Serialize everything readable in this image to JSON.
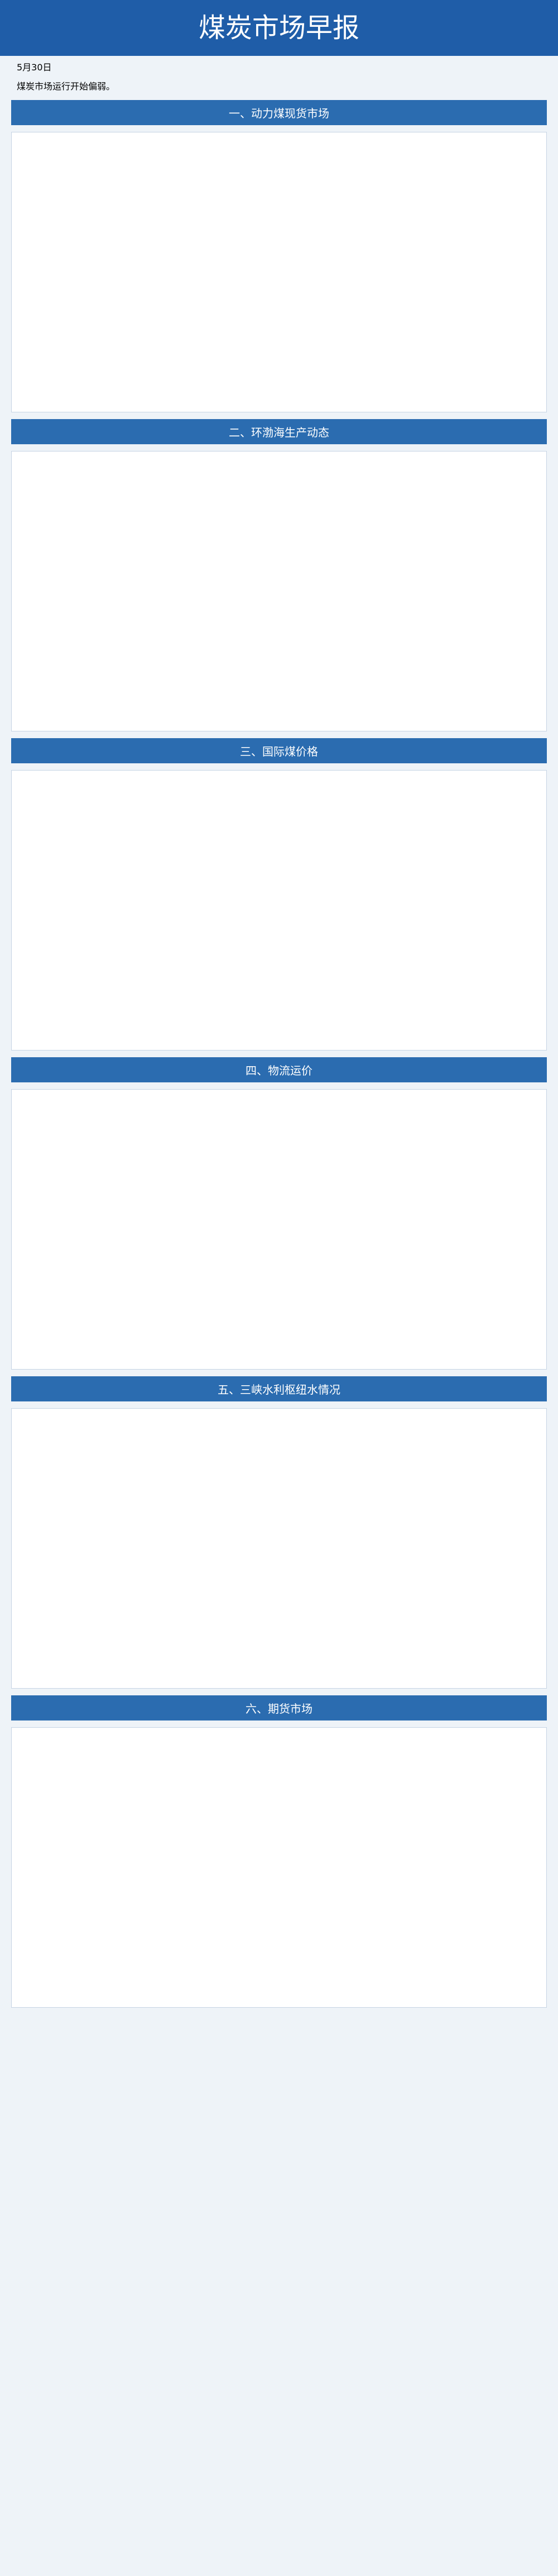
{
  "title": "煤炭市场早报",
  "date": "5月30日",
  "p1": "煤炭市场运行开始偏弱。",
  "sec": [
    "一、动力煤现货市场",
    "二、环渤海生产动态",
    "三、国际煤价格",
    "四、物流运价",
    "五、三峡水利枢纽水情况",
    "六、期货市场"
  ]
}
